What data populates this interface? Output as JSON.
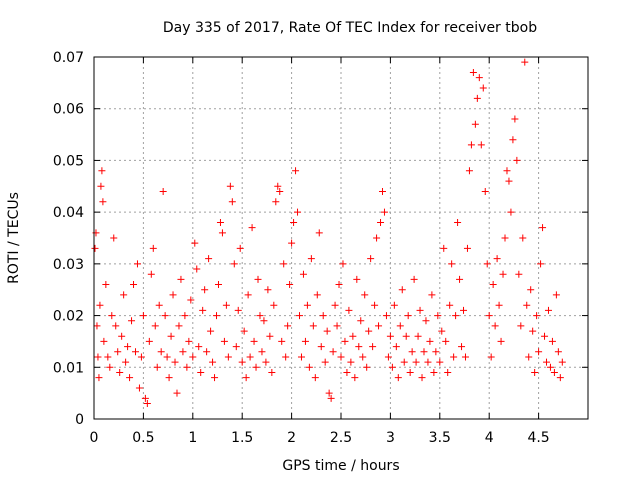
{
  "chart_data": {
    "type": "scatter",
    "title": "Day 335 of 2017, Rate Of TEC Index for receiver tbob",
    "xlabel": "GPS time / hours",
    "ylabel": "ROTI / TECUs",
    "xlim": [
      0,
      5
    ],
    "ylim": [
      0,
      0.07
    ],
    "grid": true,
    "marker": "+",
    "color": "#ff0000",
    "x_ticks": [
      0,
      0.5,
      1,
      1.5,
      2,
      2.5,
      3,
      3.5,
      4,
      4.5
    ],
    "x_tick_labels": [
      "0",
      "0.5",
      "1",
      "1.5",
      "2",
      "2.5",
      "3",
      "3.5",
      "4",
      "4.5"
    ],
    "y_ticks": [
      0,
      0.01,
      0.02,
      0.03,
      0.04,
      0.05,
      0.06,
      0.07
    ],
    "y_tick_labels": [
      "0",
      "0.01",
      "0.02",
      "0.03",
      "0.04",
      "0.05",
      "0.06",
      "0.07"
    ],
    "series": [
      {
        "name": "ROTI",
        "points": [
          [
            0.01,
            0.033
          ],
          [
            0.02,
            0.036
          ],
          [
            0.03,
            0.018
          ],
          [
            0.04,
            0.012
          ],
          [
            0.05,
            0.008
          ],
          [
            0.06,
            0.022
          ],
          [
            0.07,
            0.045
          ],
          [
            0.08,
            0.048
          ],
          [
            0.09,
            0.042
          ],
          [
            0.1,
            0.015
          ],
          [
            0.12,
            0.026
          ],
          [
            0.14,
            0.012
          ],
          [
            0.16,
            0.01
          ],
          [
            0.18,
            0.02
          ],
          [
            0.2,
            0.035
          ],
          [
            0.22,
            0.018
          ],
          [
            0.24,
            0.013
          ],
          [
            0.26,
            0.009
          ],
          [
            0.28,
            0.016
          ],
          [
            0.3,
            0.024
          ],
          [
            0.32,
            0.011
          ],
          [
            0.34,
            0.014
          ],
          [
            0.36,
            0.008
          ],
          [
            0.38,
            0.019
          ],
          [
            0.4,
            0.026
          ],
          [
            0.42,
            0.013
          ],
          [
            0.44,
            0.03
          ],
          [
            0.46,
            0.006
          ],
          [
            0.48,
            0.012
          ],
          [
            0.5,
            0.02
          ],
          [
            0.52,
            0.004
          ],
          [
            0.54,
            0.003
          ],
          [
            0.56,
            0.015
          ],
          [
            0.58,
            0.028
          ],
          [
            0.6,
            0.033
          ],
          [
            0.62,
            0.018
          ],
          [
            0.64,
            0.01
          ],
          [
            0.66,
            0.022
          ],
          [
            0.68,
            0.013
          ],
          [
            0.7,
            0.044
          ],
          [
            0.72,
            0.02
          ],
          [
            0.74,
            0.012
          ],
          [
            0.76,
            0.008
          ],
          [
            0.78,
            0.016
          ],
          [
            0.8,
            0.024
          ],
          [
            0.82,
            0.011
          ],
          [
            0.84,
            0.005
          ],
          [
            0.86,
            0.018
          ],
          [
            0.88,
            0.027
          ],
          [
            0.9,
            0.013
          ],
          [
            0.92,
            0.02
          ],
          [
            0.94,
            0.01
          ],
          [
            0.96,
            0.015
          ],
          [
            0.98,
            0.023
          ],
          [
            1.0,
            0.012
          ],
          [
            1.02,
            0.034
          ],
          [
            1.04,
            0.029
          ],
          [
            1.06,
            0.014
          ],
          [
            1.08,
            0.009
          ],
          [
            1.1,
            0.021
          ],
          [
            1.12,
            0.025
          ],
          [
            1.14,
            0.013
          ],
          [
            1.16,
            0.031
          ],
          [
            1.18,
            0.017
          ],
          [
            1.2,
            0.011
          ],
          [
            1.22,
            0.008
          ],
          [
            1.24,
            0.02
          ],
          [
            1.26,
            0.026
          ],
          [
            1.28,
            0.038
          ],
          [
            1.3,
            0.036
          ],
          [
            1.32,
            0.015
          ],
          [
            1.34,
            0.022
          ],
          [
            1.36,
            0.012
          ],
          [
            1.38,
            0.045
          ],
          [
            1.4,
            0.042
          ],
          [
            1.42,
            0.03
          ],
          [
            1.44,
            0.014
          ],
          [
            1.46,
            0.021
          ],
          [
            1.48,
            0.033
          ],
          [
            1.5,
            0.011
          ],
          [
            1.52,
            0.017
          ],
          [
            1.54,
            0.008
          ],
          [
            1.56,
            0.024
          ],
          [
            1.58,
            0.012
          ],
          [
            1.6,
            0.037
          ],
          [
            1.62,
            0.015
          ],
          [
            1.64,
            0.01
          ],
          [
            1.66,
            0.027
          ],
          [
            1.68,
            0.02
          ],
          [
            1.7,
            0.013
          ],
          [
            1.72,
            0.019
          ],
          [
            1.74,
            0.011
          ],
          [
            1.76,
            0.025
          ],
          [
            1.78,
            0.016
          ],
          [
            1.8,
            0.009
          ],
          [
            1.82,
            0.022
          ],
          [
            1.84,
            0.042
          ],
          [
            1.86,
            0.045
          ],
          [
            1.88,
            0.044
          ],
          [
            1.9,
            0.015
          ],
          [
            1.92,
            0.03
          ],
          [
            1.94,
            0.012
          ],
          [
            1.96,
            0.018
          ],
          [
            1.98,
            0.026
          ],
          [
            2.0,
            0.034
          ],
          [
            2.02,
            0.038
          ],
          [
            2.04,
            0.048
          ],
          [
            2.06,
            0.04
          ],
          [
            2.08,
            0.02
          ],
          [
            2.1,
            0.012
          ],
          [
            2.12,
            0.028
          ],
          [
            2.14,
            0.015
          ],
          [
            2.16,
            0.022
          ],
          [
            2.18,
            0.01
          ],
          [
            2.2,
            0.031
          ],
          [
            2.22,
            0.018
          ],
          [
            2.24,
            0.008
          ],
          [
            2.26,
            0.024
          ],
          [
            2.28,
            0.036
          ],
          [
            2.3,
            0.014
          ],
          [
            2.32,
            0.02
          ],
          [
            2.34,
            0.011
          ],
          [
            2.36,
            0.017
          ],
          [
            2.38,
            0.005
          ],
          [
            2.4,
            0.004
          ],
          [
            2.42,
            0.013
          ],
          [
            2.44,
            0.022
          ],
          [
            2.46,
            0.018
          ],
          [
            2.48,
            0.026
          ],
          [
            2.5,
            0.012
          ],
          [
            2.52,
            0.03
          ],
          [
            2.54,
            0.015
          ],
          [
            2.56,
            0.009
          ],
          [
            2.58,
            0.021
          ],
          [
            2.6,
            0.011
          ],
          [
            2.62,
            0.016
          ],
          [
            2.64,
            0.008
          ],
          [
            2.66,
            0.027
          ],
          [
            2.68,
            0.014
          ],
          [
            2.7,
            0.019
          ],
          [
            2.72,
            0.012
          ],
          [
            2.74,
            0.024
          ],
          [
            2.76,
            0.01
          ],
          [
            2.78,
            0.017
          ],
          [
            2.8,
            0.031
          ],
          [
            2.82,
            0.014
          ],
          [
            2.84,
            0.022
          ],
          [
            2.86,
            0.035
          ],
          [
            2.88,
            0.018
          ],
          [
            2.9,
            0.038
          ],
          [
            2.92,
            0.044
          ],
          [
            2.94,
            0.04
          ],
          [
            2.96,
            0.02
          ],
          [
            2.98,
            0.012
          ],
          [
            3.0,
            0.016
          ],
          [
            3.02,
            0.01
          ],
          [
            3.04,
            0.022
          ],
          [
            3.06,
            0.014
          ],
          [
            3.08,
            0.008
          ],
          [
            3.1,
            0.018
          ],
          [
            3.12,
            0.025
          ],
          [
            3.14,
            0.011
          ],
          [
            3.16,
            0.016
          ],
          [
            3.18,
            0.02
          ],
          [
            3.2,
            0.009
          ],
          [
            3.22,
            0.013
          ],
          [
            3.24,
            0.027
          ],
          [
            3.26,
            0.011
          ],
          [
            3.28,
            0.016
          ],
          [
            3.3,
            0.021
          ],
          [
            3.32,
            0.008
          ],
          [
            3.34,
            0.013
          ],
          [
            3.36,
            0.019
          ],
          [
            3.38,
            0.011
          ],
          [
            3.4,
            0.015
          ],
          [
            3.42,
            0.024
          ],
          [
            3.44,
            0.009
          ],
          [
            3.46,
            0.013
          ],
          [
            3.48,
            0.02
          ],
          [
            3.5,
            0.011
          ],
          [
            3.52,
            0.017
          ],
          [
            3.54,
            0.033
          ],
          [
            3.56,
            0.015
          ],
          [
            3.58,
            0.009
          ],
          [
            3.6,
            0.022
          ],
          [
            3.62,
            0.03
          ],
          [
            3.64,
            0.012
          ],
          [
            3.66,
            0.02
          ],
          [
            3.68,
            0.038
          ],
          [
            3.7,
            0.027
          ],
          [
            3.72,
            0.014
          ],
          [
            3.74,
            0.021
          ],
          [
            3.76,
            0.012
          ],
          [
            3.78,
            0.033
          ],
          [
            3.8,
            0.048
          ],
          [
            3.82,
            0.053
          ],
          [
            3.84,
            0.067
          ],
          [
            3.86,
            0.057
          ],
          [
            3.88,
            0.062
          ],
          [
            3.9,
            0.066
          ],
          [
            3.92,
            0.053
          ],
          [
            3.94,
            0.064
          ],
          [
            3.96,
            0.044
          ],
          [
            3.98,
            0.03
          ],
          [
            4.0,
            0.02
          ],
          [
            4.02,
            0.012
          ],
          [
            4.04,
            0.026
          ],
          [
            4.06,
            0.018
          ],
          [
            4.08,
            0.031
          ],
          [
            4.1,
            0.022
          ],
          [
            4.12,
            0.015
          ],
          [
            4.14,
            0.028
          ],
          [
            4.16,
            0.035
          ],
          [
            4.18,
            0.048
          ],
          [
            4.2,
            0.046
          ],
          [
            4.22,
            0.04
          ],
          [
            4.24,
            0.054
          ],
          [
            4.26,
            0.058
          ],
          [
            4.28,
            0.05
          ],
          [
            4.3,
            0.028
          ],
          [
            4.32,
            0.018
          ],
          [
            4.34,
            0.035
          ],
          [
            4.36,
            0.069
          ],
          [
            4.38,
            0.022
          ],
          [
            4.4,
            0.012
          ],
          [
            4.42,
            0.025
          ],
          [
            4.44,
            0.017
          ],
          [
            4.46,
            0.009
          ],
          [
            4.48,
            0.02
          ],
          [
            4.5,
            0.013
          ],
          [
            4.52,
            0.03
          ],
          [
            4.54,
            0.037
          ],
          [
            4.56,
            0.016
          ],
          [
            4.58,
            0.011
          ],
          [
            4.6,
            0.021
          ],
          [
            4.62,
            0.01
          ],
          [
            4.64,
            0.015
          ],
          [
            4.66,
            0.009
          ],
          [
            4.68,
            0.024
          ],
          [
            4.7,
            0.013
          ],
          [
            4.72,
            0.008
          ],
          [
            4.74,
            0.011
          ]
        ]
      }
    ]
  }
}
